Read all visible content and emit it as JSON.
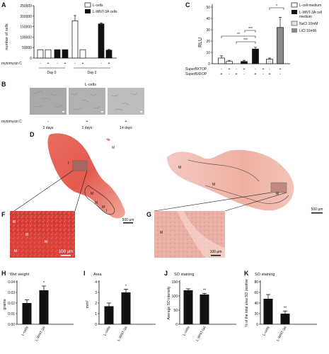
{
  "panels": {
    "A": {
      "letter": "A",
      "ylabel": "number of cells",
      "yticks": [
        "250000",
        "200000",
        "150000",
        "100000",
        "50000",
        "0"
      ],
      "legend": [
        "L-cells",
        "L-WNT-3A cells"
      ],
      "row_label": "mytomycin C",
      "signs": [
        "-",
        "+",
        "-",
        "+",
        "-",
        "+",
        "-",
        "+"
      ],
      "groups": [
        "Day 0",
        "Day 2"
      ]
    },
    "B": {
      "letter": "B",
      "title": "L-cells",
      "row_label": "mytomycin C",
      "signs": [
        "-",
        "+",
        "+"
      ],
      "times": [
        "2 days",
        "2 days",
        "14 days"
      ]
    },
    "C": {
      "letter": "C",
      "ylabel": "RLU",
      "yticks": [
        "50",
        "40",
        "30",
        "20",
        "10",
        "0"
      ],
      "legend": [
        "L-cell medium",
        "L-WNT-3A cell medium",
        "NaCl 10mM",
        "LiCl 10mM"
      ],
      "row1_label": "SuperBXTOP",
      "row2_label": "SuperBXFOP",
      "row1": [
        "-",
        "+",
        "-",
        "+",
        "-",
        "+",
        "-",
        "+"
      ],
      "row2": [
        "+",
        "-",
        "+",
        "-",
        "+",
        "-",
        "+",
        "-"
      ],
      "sig": [
        "**",
        "***",
        "***",
        "*"
      ]
    },
    "D": {
      "letter": "D",
      "labels": [
        "I",
        "M",
        "M",
        "M",
        "M",
        "I"
      ],
      "scale": "500 μm"
    },
    "E": {
      "letter": "E",
      "labels": [
        "M",
        "M",
        "M"
      ],
      "scale": "500 μm"
    },
    "F": {
      "letter": "F",
      "labels": [
        "M",
        "M",
        "M",
        "M"
      ],
      "scale": "100 μm"
    },
    "G": {
      "letter": "G",
      "labels": [
        "M"
      ],
      "scale": "100 μm"
    },
    "H": {
      "letter": "H",
      "title": "Wet weight",
      "ylabel": "grams",
      "yticks": [
        "0.04",
        "0.03",
        "0.02",
        "0.01",
        "0.00"
      ],
      "sig": "*"
    },
    "I": {
      "letter": "I",
      "title": "Area",
      "ylabel": "mm²",
      "yticks": [
        "4",
        "3",
        "2",
        "1",
        "0"
      ],
      "sig": "*"
    },
    "J": {
      "letter": "J",
      "title": "SO staining",
      "ylabel": "Average SO intensity",
      "yticks": [
        "150",
        "100",
        "50",
        "0"
      ],
      "sig": "**"
    },
    "K": {
      "letter": "K",
      "title": "SO staining",
      "ylabel": "% of the total area SO positive",
      "yticks": [
        "80",
        "60",
        "40",
        "20",
        "0"
      ],
      "sig": "**"
    }
  },
  "chart_data": [
    {
      "panel": "A",
      "type": "bar",
      "ylim": [
        0,
        250000
      ],
      "series": [
        {
          "name": "L-cells",
          "values": [
            40000,
            40000,
            178000,
            40000
          ],
          "errors": [
            0,
            0,
            25000,
            0
          ]
        },
        {
          "name": "L-WNT-3A cells",
          "values": [
            40000,
            40000,
            163000,
            38000
          ],
          "errors": [
            0,
            0,
            5000,
            3000
          ]
        }
      ]
    },
    {
      "panel": "C",
      "type": "bar",
      "ylim": [
        0,
        50
      ],
      "values": [
        5,
        2,
        2,
        13,
        4,
        32
      ],
      "errors": [
        2,
        1,
        1,
        1.5,
        1,
        9
      ],
      "series_per_group": [
        "L-cell medium",
        "L-WNT-3A cell medium",
        "NaCl 10mM",
        "LiCl 10mM"
      ]
    },
    {
      "panel": "H",
      "type": "bar",
      "categories": [
        "L-cells",
        "L-WNT-3A"
      ],
      "values": [
        0.02,
        0.032
      ],
      "errors": [
        0.003,
        0.004
      ],
      "ylim": [
        0,
        0.04
      ]
    },
    {
      "panel": "I",
      "type": "bar",
      "categories": [
        "L-cells",
        "L-WNT-3A"
      ],
      "values": [
        1.7,
        3.0
      ],
      "errors": [
        0.3,
        0.3
      ],
      "ylim": [
        0,
        4
      ]
    },
    {
      "panel": "J",
      "type": "bar",
      "categories": [
        "L-cells",
        "L-WNT-3A"
      ],
      "values": [
        120,
        105
      ],
      "errors": [
        5,
        4
      ],
      "ylim": [
        0,
        150
      ]
    },
    {
      "panel": "K",
      "type": "bar",
      "categories": [
        "L-cells",
        "L-WNT-3A"
      ],
      "values": [
        48,
        20
      ],
      "errors": [
        8,
        5
      ],
      "ylim": [
        0,
        80
      ]
    }
  ]
}
